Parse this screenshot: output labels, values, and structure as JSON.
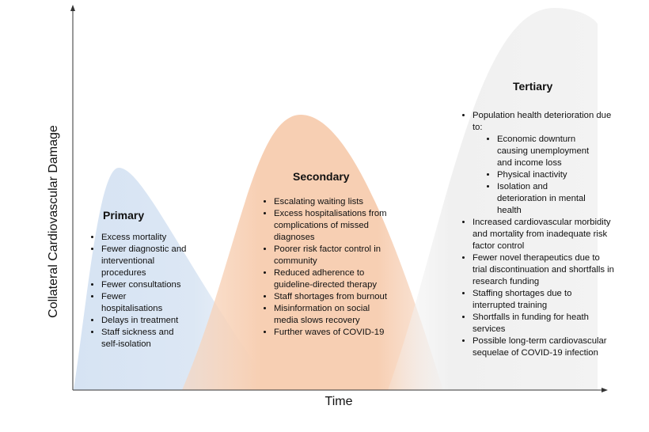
{
  "y_axis_label": "Collateral Cardiovascular Damage",
  "x_axis_label": "Time",
  "sections": [
    {
      "title": "Primary",
      "items": [
        {
          "text": "Excess mortality"
        },
        {
          "text": "Fewer diagnostic and interventional procedures"
        },
        {
          "text": "Fewer consultations"
        },
        {
          "text": "Fewer hospitalisations"
        },
        {
          "text": "Delays in treatment"
        },
        {
          "text": "Staff sickness and self-isolation"
        }
      ]
    },
    {
      "title": "Secondary",
      "items": [
        {
          "text": "Escalating waiting lists"
        },
        {
          "text": "Excess hospitalisations from complications of missed diagnoses"
        },
        {
          "text": "Poorer risk factor control in community"
        },
        {
          "text": "Reduced adherence to guideline-directed therapy"
        },
        {
          "text": "Staff shortages from burnout"
        },
        {
          "text": "Misinformation on social media slows recovery"
        },
        {
          "text": "Further waves of COVID-19"
        }
      ]
    },
    {
      "title": "Tertiary",
      "items": [
        {
          "text": "Population health deterioration due to:",
          "subitems": [
            "Economic downturn causing unemployment and income loss",
            "Physical inactivity",
            "Isolation and deterioration in mental health"
          ]
        },
        {
          "text": "Increased cardiovascular morbidity and mortality from inadequate risk factor control"
        },
        {
          "text": "Fewer novel therapeutics due to trial discontinuation and shortfalls in research funding"
        },
        {
          "text": "Staffing shortages due to interrupted training"
        },
        {
          "text": "Shortfalls in funding for heath services"
        },
        {
          "text": "Possible long-term cardiovascular sequelae of COVID-19 infection"
        }
      ]
    }
  ]
}
